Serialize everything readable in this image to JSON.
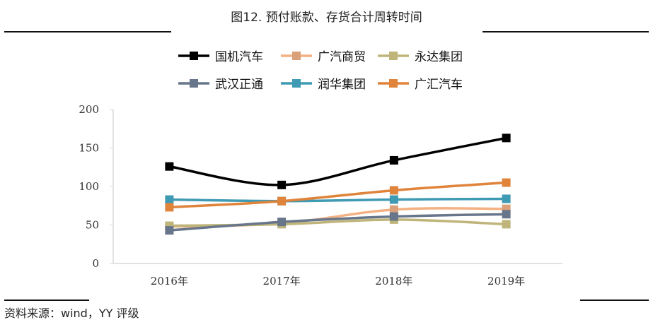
{
  "title": "图12. 预付账款、存货合计周转时间",
  "source": "资料来源：wind，YY 评级",
  "chart_data": {
    "type": "line",
    "title": "图12. 预付账款、存货合计周转时间",
    "categories": [
      "2016年",
      "2017年",
      "2018年",
      "2019年"
    ],
    "ylim": [
      0,
      200
    ],
    "yticks": [
      0,
      50,
      100,
      150,
      200
    ],
    "grid": false,
    "legend": "top",
    "series": [
      {
        "name": "国机汽车",
        "color": "#000000",
        "values": [
          126,
          102,
          134,
          163
        ]
      },
      {
        "name": "广汽商贸",
        "color": "#F4B183",
        "marker": "#D9A07A",
        "values": [
          48,
          52,
          70,
          71
        ]
      },
      {
        "name": "永达集团",
        "color": "#BFB57A",
        "values": [
          49,
          51,
          57,
          51
        ]
      },
      {
        "name": "武汉正通",
        "color": "#67768A",
        "values": [
          43,
          54,
          61,
          64
        ]
      },
      {
        "name": "润华集团",
        "color": "#3F9AB3",
        "values": [
          83,
          81,
          83,
          84
        ]
      },
      {
        "name": "广汇汽车",
        "color": "#E0843C",
        "values": [
          73,
          81,
          95,
          105
        ]
      }
    ]
  }
}
